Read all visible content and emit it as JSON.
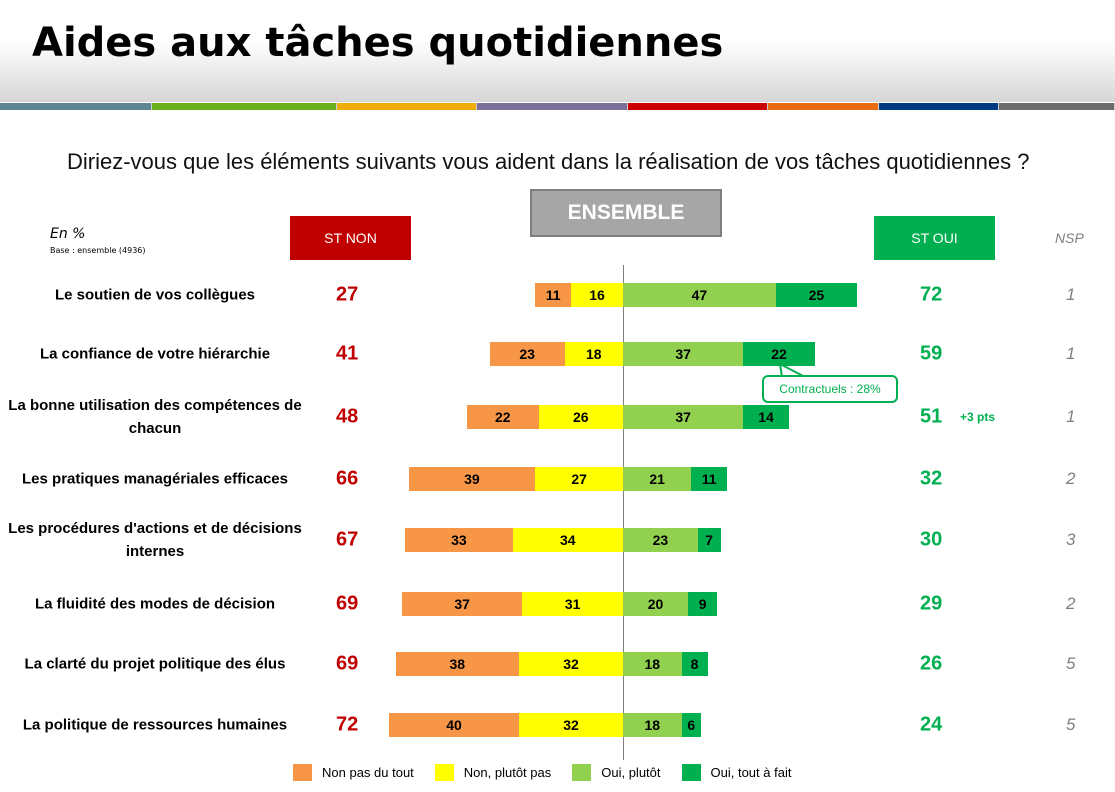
{
  "title": "Aides aux tâches quotidiennes",
  "band_colors": [
    "#5b8591",
    "#6aaf1c",
    "#f0ac0b",
    "#7d709b",
    "#cc0000",
    "#e86b10",
    "#003a80",
    "#6b6b6b"
  ],
  "question": "Diriez-vous que les éléments suivants vous aident dans la réalisation de vos tâches quotidiennes ?",
  "ensemble_label": "ENSEMBLE",
  "unit_label": "En %",
  "base_label": "Base : ensemble (4936)",
  "st_non_label": "ST NON",
  "st_oui_label": "ST OUI",
  "nsp_label": "NSP",
  "colors": {
    "st_non": "#c00000",
    "st_oui": "#00b050",
    "non_pas_du_tout": "#f79646",
    "non_plutot_pas": "#ffff00",
    "oui_plutot": "#92d050",
    "oui_tout_a_fait": "#00b050"
  },
  "callout": "Contractuels : 28%",
  "chart_data": {
    "type": "bar",
    "orientation": "horizontal diverging stacked",
    "categories": [
      "Le soutien de vos collègues",
      "La confiance de votre hiérarchie",
      "La bonne utilisation des compétences de chacun",
      "Les pratiques managériales efficaces",
      "Les procédures d'actions et de décisions internes",
      "La fluidité des modes de décision",
      "La clarté du projet politique des élus",
      "La politique de ressources humaines"
    ],
    "series": [
      {
        "name": "Non pas du tout",
        "values": [
          11,
          23,
          22,
          39,
          33,
          37,
          38,
          40
        ]
      },
      {
        "name": "Non, plutôt pas",
        "values": [
          16,
          18,
          26,
          27,
          34,
          31,
          32,
          32
        ]
      },
      {
        "name": "Oui, plutôt",
        "values": [
          47,
          37,
          37,
          21,
          23,
          20,
          18,
          18
        ]
      },
      {
        "name": "Oui, tout à fait",
        "values": [
          25,
          22,
          14,
          11,
          7,
          9,
          8,
          6
        ]
      }
    ],
    "st_non": [
      27,
      41,
      48,
      66,
      67,
      69,
      69,
      72
    ],
    "st_oui": [
      72,
      59,
      51,
      32,
      30,
      29,
      26,
      24
    ],
    "nsp": [
      1,
      1,
      1,
      2,
      3,
      2,
      5,
      5
    ],
    "annotations": [
      "",
      "",
      "+3 pts",
      "",
      "",
      "",
      "",
      ""
    ],
    "legend": "bottom"
  }
}
